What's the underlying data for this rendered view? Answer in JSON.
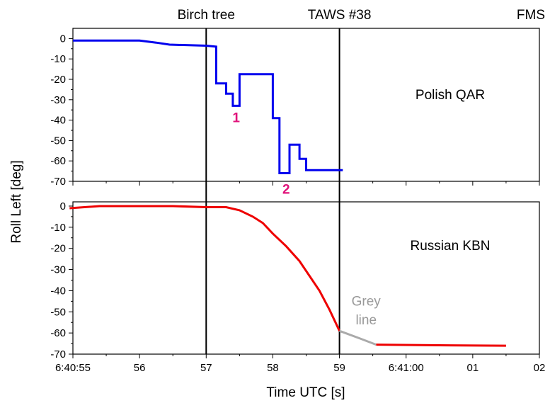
{
  "chart_data": {
    "type": "line",
    "ylabel": "Roll Left [deg]",
    "xlabel": "Time UTC [s]",
    "x_unit": "seconds after 6:40:55 UTC",
    "x_range": [
      0,
      7
    ],
    "x_ticks": [
      {
        "x": 0,
        "label": "6:40:55"
      },
      {
        "x": 1,
        "label": "56"
      },
      {
        "x": 2,
        "label": "57"
      },
      {
        "x": 3,
        "label": "58"
      },
      {
        "x": 4,
        "label": "59"
      },
      {
        "x": 5,
        "label": "6:41:00"
      },
      {
        "x": 6,
        "label": "01"
      },
      {
        "x": 7,
        "label": "02"
      }
    ],
    "event_lines": [
      {
        "label": "Birch tree",
        "x": 2.0
      },
      {
        "label": "TAWS #38",
        "x": 4.0
      },
      {
        "label": "FMS",
        "x": 7.0
      }
    ],
    "panels": [
      {
        "name": "Polish QAR",
        "ylim": [
          -70,
          5
        ],
        "y_ticks": [
          0,
          -10,
          -20,
          -30,
          -40,
          -50,
          -60,
          -70
        ],
        "series": [
          {
            "name": "",
            "color": "#0000ee",
            "step": true,
            "points": [
              [
                0.0,
                -1
              ],
              [
                1.0,
                -1
              ],
              [
                1.25,
                -2
              ],
              [
                1.45,
                -3
              ],
              [
                2.0,
                -3.5
              ],
              [
                2.15,
                -4
              ],
              [
                2.15,
                -22
              ],
              [
                2.3,
                -22
              ],
              [
                2.3,
                -27
              ],
              [
                2.4,
                -27
              ],
              [
                2.4,
                -33
              ],
              [
                2.5,
                -33
              ],
              [
                2.5,
                -17.5
              ],
              [
                3.0,
                -17.5
              ],
              [
                3.0,
                -39
              ],
              [
                3.1,
                -39
              ],
              [
                3.1,
                -66
              ],
              [
                3.25,
                -66
              ],
              [
                3.25,
                -52
              ],
              [
                3.4,
                -52
              ],
              [
                3.4,
                -59
              ],
              [
                3.5,
                -59
              ],
              [
                3.5,
                -64.5
              ],
              [
                4.05,
                -64.5
              ]
            ]
          }
        ],
        "annotations": [
          {
            "text": "1",
            "x": 2.45,
            "y": -41,
            "color": "#e0127a"
          },
          {
            "text": "2",
            "x": 3.2,
            "y": -76,
            "color": "#e0127a"
          }
        ]
      },
      {
        "name": "Russian KBN",
        "ylim": [
          -70,
          2
        ],
        "y_ticks": [
          0,
          -10,
          -20,
          -30,
          -40,
          -50,
          -60,
          -70
        ],
        "series": [
          {
            "name": "",
            "color": "#ee0000",
            "points": [
              [
                -0.05,
                -1
              ],
              [
                0.4,
                0
              ],
              [
                1.0,
                0
              ],
              [
                1.5,
                0
              ],
              [
                2.0,
                -0.5
              ],
              [
                2.3,
                -0.5
              ],
              [
                2.5,
                -2
              ],
              [
                2.7,
                -5
              ],
              [
                2.85,
                -8
              ],
              [
                3.0,
                -13
              ],
              [
                3.2,
                -19
              ],
              [
                3.4,
                -26
              ],
              [
                3.55,
                -33
              ],
              [
                3.7,
                -40
              ],
              [
                3.85,
                -49
              ],
              [
                4.0,
                -59
              ]
            ]
          },
          {
            "name": "Grey line",
            "color": "#aaaaaa",
            "points": [
              [
                4.0,
                -59
              ],
              [
                4.3,
                -62.5
              ],
              [
                4.55,
                -65.5
              ]
            ]
          },
          {
            "name": "",
            "color": "#ee0000",
            "points": [
              [
                4.55,
                -65.5
              ],
              [
                5.5,
                -65.8
              ],
              [
                6.5,
                -66
              ]
            ]
          }
        ],
        "annotations": [
          {
            "text": "Grey",
            "x": 4.4,
            "y": -47,
            "color": "#999999"
          },
          {
            "text": "line",
            "x": 4.4,
            "y": -56,
            "color": "#999999"
          }
        ]
      }
    ]
  }
}
